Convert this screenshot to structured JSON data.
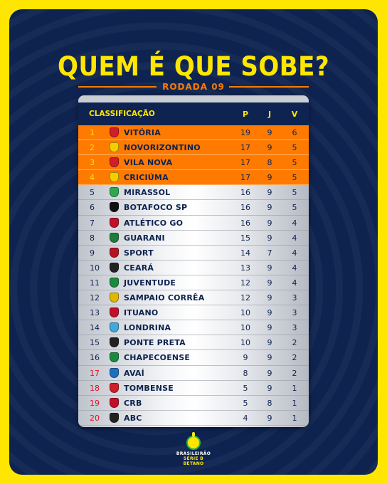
{
  "header": {
    "title": "QUEM É QUE SOBE?",
    "subtitle": "RODADA 09"
  },
  "table": {
    "columns": {
      "class": "CLASSIFICAÇÃO",
      "p": "P",
      "j": "J",
      "v": "V"
    },
    "rows": [
      {
        "pos": "1",
        "team": "VITÓRIA",
        "p": "19",
        "j": "9",
        "v": "6",
        "zone": "promo",
        "crest": "#d01e2a"
      },
      {
        "pos": "2",
        "team": "NOVORIZONTINO",
        "p": "17",
        "j": "9",
        "v": "5",
        "zone": "promo",
        "crest": "#f2d000"
      },
      {
        "pos": "3",
        "team": "VILA NOVA",
        "p": "17",
        "j": "8",
        "v": "5",
        "zone": "promo",
        "crest": "#d01e2a"
      },
      {
        "pos": "4",
        "team": "CRICIÚMA",
        "p": "17",
        "j": "9",
        "v": "5",
        "zone": "promo",
        "crest": "#f2d000"
      },
      {
        "pos": "5",
        "team": "MIRASSOL",
        "p": "16",
        "j": "9",
        "v": "5",
        "zone": "mid",
        "crest": "#2fa84f"
      },
      {
        "pos": "6",
        "team": "BOTAFOCO SP",
        "p": "16",
        "j": "9",
        "v": "5",
        "zone": "mid",
        "crest": "#111111"
      },
      {
        "pos": "7",
        "team": "ATLÉTICO GO",
        "p": "16",
        "j": "9",
        "v": "4",
        "zone": "mid",
        "crest": "#c0102a"
      },
      {
        "pos": "8",
        "team": "GUARANI",
        "p": "15",
        "j": "9",
        "v": "4",
        "zone": "mid",
        "crest": "#1e7d3a"
      },
      {
        "pos": "9",
        "team": "SPORT",
        "p": "14",
        "j": "7",
        "v": "4",
        "zone": "mid",
        "crest": "#b3141f"
      },
      {
        "pos": "10",
        "team": "CEARÁ",
        "p": "13",
        "j": "9",
        "v": "4",
        "zone": "mid",
        "crest": "#222222"
      },
      {
        "pos": "11",
        "team": "JUVENTUDE",
        "p": "12",
        "j": "9",
        "v": "4",
        "zone": "mid",
        "crest": "#1a8a3c"
      },
      {
        "pos": "12",
        "team": "SAMPAIO CORRÊA",
        "p": "12",
        "j": "9",
        "v": "3",
        "zone": "mid",
        "crest": "#e0b800"
      },
      {
        "pos": "13",
        "team": "ITUANO",
        "p": "10",
        "j": "9",
        "v": "3",
        "zone": "mid",
        "crest": "#c0102a"
      },
      {
        "pos": "14",
        "team": "LONDRINA",
        "p": "10",
        "j": "9",
        "v": "3",
        "zone": "mid",
        "crest": "#3fa9d9"
      },
      {
        "pos": "15",
        "team": "PONTE PRETA",
        "p": "10",
        "j": "9",
        "v": "2",
        "zone": "mid",
        "crest": "#222222"
      },
      {
        "pos": "16",
        "team": "CHAPECOENSE",
        "p": "9",
        "j": "9",
        "v": "2",
        "zone": "mid",
        "crest": "#1a8a3c"
      },
      {
        "pos": "17",
        "team": "AVAÍ",
        "p": "8",
        "j": "9",
        "v": "2",
        "zone": "releg",
        "crest": "#1f6fc0"
      },
      {
        "pos": "18",
        "team": "TOMBENSE",
        "p": "5",
        "j": "9",
        "v": "1",
        "zone": "releg",
        "crest": "#d01e2a"
      },
      {
        "pos": "19",
        "team": "CRB",
        "p": "5",
        "j": "8",
        "v": "1",
        "zone": "releg",
        "crest": "#c0102a"
      },
      {
        "pos": "20",
        "team": "ABC",
        "p": "4",
        "j": "9",
        "v": "1",
        "zone": "releg",
        "crest": "#222222"
      }
    ]
  },
  "footer": {
    "brand_line1": "BRASILEIRÃO",
    "brand_line2": "SÉRIE B BETANO"
  }
}
